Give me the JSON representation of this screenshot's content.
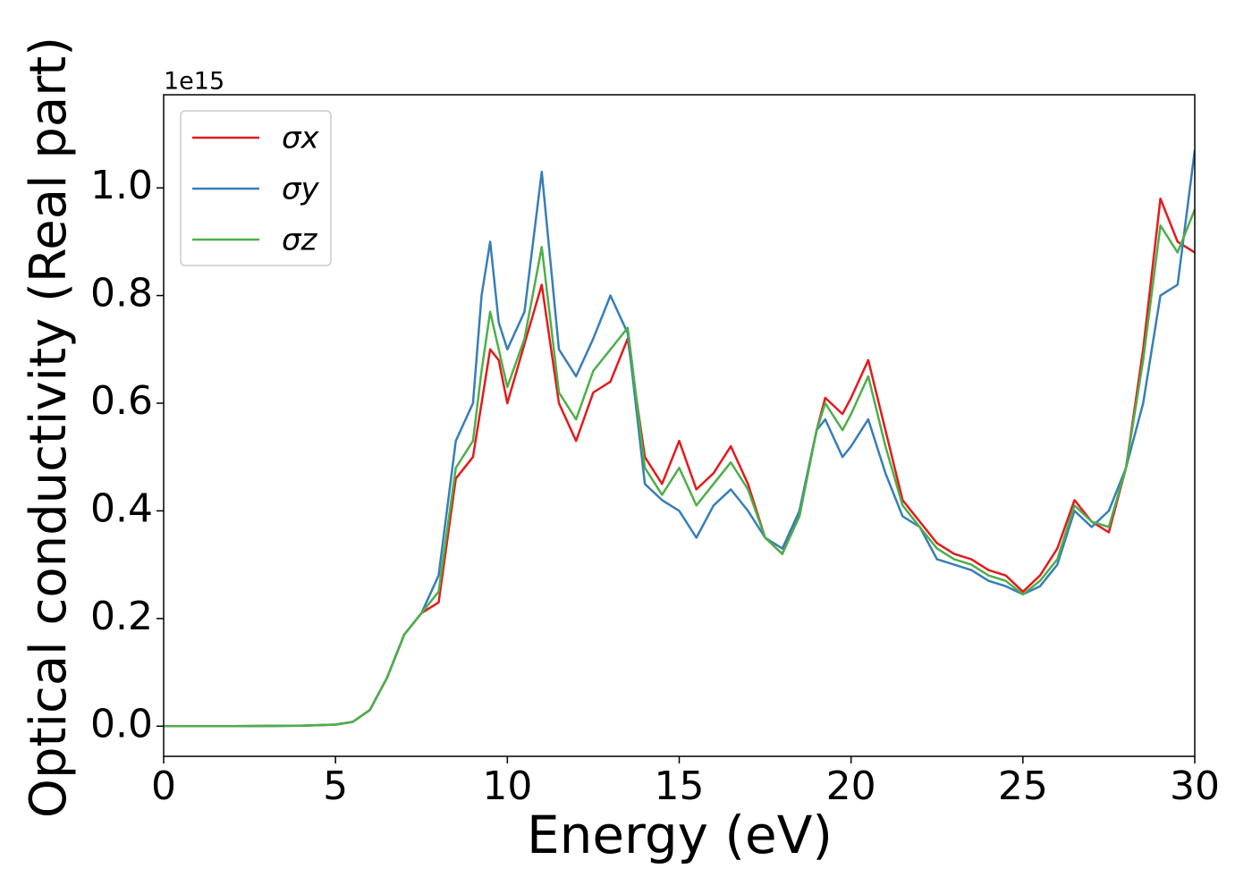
{
  "chart_data": {
    "type": "line",
    "xlabel": "Energy (eV)",
    "ylabel": "Optical conductivity (Real part)",
    "offset_label": "1e15",
    "x": [
      0,
      2,
      4,
      5,
      5.5,
      6,
      6.5,
      7,
      7.5,
      8,
      8.5,
      9,
      9.25,
      9.5,
      9.75,
      10,
      10.5,
      11,
      11.5,
      12,
      12.5,
      13,
      13.5,
      14,
      14.5,
      15,
      15.5,
      16,
      16.5,
      17,
      17.5,
      18,
      18.5,
      19,
      19.25,
      19.75,
      20,
      20.5,
      21,
      21.5,
      22,
      22.5,
      23,
      23.5,
      24,
      24.5,
      25,
      25.5,
      26,
      26.5,
      27,
      27.5,
      28,
      28.5,
      29,
      29.5,
      30
    ],
    "series": [
      {
        "name": "σx",
        "color": "#e41a1c",
        "values": [
          0,
          0,
          0.001,
          0.003,
          0.008,
          0.03,
          0.09,
          0.17,
          0.21,
          0.23,
          0.46,
          0.5,
          0.6,
          0.7,
          0.68,
          0.6,
          0.71,
          0.82,
          0.6,
          0.53,
          0.62,
          0.64,
          0.72,
          0.5,
          0.45,
          0.53,
          0.44,
          0.47,
          0.52,
          0.45,
          0.35,
          0.32,
          0.4,
          0.55,
          0.61,
          0.58,
          0.61,
          0.68,
          0.55,
          0.42,
          0.38,
          0.34,
          0.32,
          0.31,
          0.29,
          0.28,
          0.25,
          0.28,
          0.33,
          0.42,
          0.38,
          0.36,
          0.48,
          0.7,
          0.98,
          0.9,
          0.88
        ]
      },
      {
        "name": "σy",
        "color": "#377eb8",
        "values": [
          0,
          0,
          0.001,
          0.003,
          0.008,
          0.03,
          0.09,
          0.17,
          0.21,
          0.28,
          0.53,
          0.6,
          0.8,
          0.9,
          0.75,
          0.7,
          0.77,
          1.03,
          0.7,
          0.65,
          0.72,
          0.8,
          0.73,
          0.45,
          0.42,
          0.4,
          0.35,
          0.41,
          0.44,
          0.4,
          0.35,
          0.33,
          0.4,
          0.55,
          0.57,
          0.5,
          0.52,
          0.57,
          0.47,
          0.39,
          0.37,
          0.31,
          0.3,
          0.29,
          0.27,
          0.26,
          0.245,
          0.26,
          0.3,
          0.4,
          0.37,
          0.4,
          0.48,
          0.6,
          0.8,
          0.82,
          1.07
        ]
      },
      {
        "name": "σz",
        "color": "#4daf4a",
        "values": [
          0,
          0,
          0.001,
          0.003,
          0.008,
          0.03,
          0.09,
          0.17,
          0.21,
          0.25,
          0.48,
          0.53,
          0.66,
          0.77,
          0.7,
          0.63,
          0.72,
          0.89,
          0.62,
          0.57,
          0.66,
          0.7,
          0.74,
          0.48,
          0.43,
          0.48,
          0.41,
          0.45,
          0.49,
          0.44,
          0.35,
          0.32,
          0.39,
          0.55,
          0.6,
          0.55,
          0.58,
          0.65,
          0.52,
          0.41,
          0.37,
          0.33,
          0.31,
          0.3,
          0.28,
          0.27,
          0.245,
          0.27,
          0.31,
          0.41,
          0.38,
          0.37,
          0.48,
          0.68,
          0.93,
          0.88,
          0.96
        ]
      }
    ],
    "xlim": [
      0,
      30
    ],
    "xticks": [
      0,
      5,
      10,
      15,
      20,
      25,
      30
    ],
    "ylim": [
      -0.056,
      1.173
    ],
    "yticks": [
      {
        "value": 0,
        "label": "0.0"
      },
      0.2,
      0.4,
      0.6,
      0.8,
      {
        "value": 1,
        "label": "1.0"
      }
    ],
    "legend": "upper left",
    "grid": false
  }
}
